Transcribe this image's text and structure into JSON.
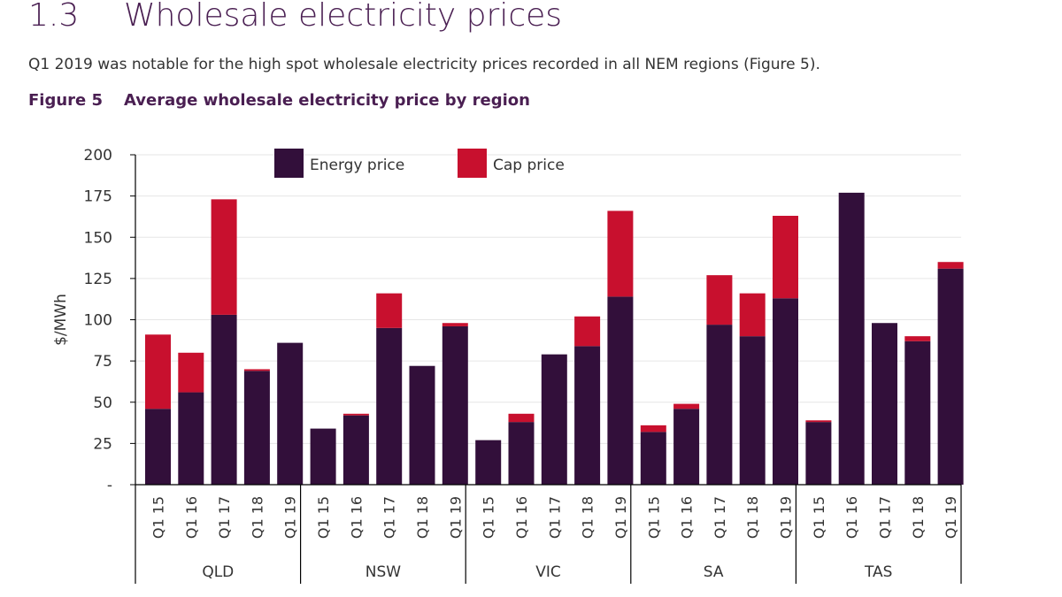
{
  "section": {
    "number": "1.3",
    "title": "Wholesale electricity prices"
  },
  "intro_text": "Q1 2019 was notable for the high spot wholesale electricity prices recorded in all NEM regions (Figure 5).",
  "figure": {
    "number": "Figure 5",
    "title": "Average wholesale electricity price by region"
  },
  "colors": {
    "energy": "#320f3a",
    "cap": "#c8102e",
    "grid": "#e6e6e6",
    "axis": "#000000",
    "text": "#333333"
  },
  "chart_data": {
    "type": "bar",
    "stacked": true,
    "ylabel": "$/MWh",
    "ylim": [
      0,
      200
    ],
    "yticks": [
      {
        "value": 0,
        "label": "-"
      },
      {
        "value": 25,
        "label": "25"
      },
      {
        "value": 50,
        "label": "50"
      },
      {
        "value": 75,
        "label": "75"
      },
      {
        "value": 100,
        "label": "100"
      },
      {
        "value": 125,
        "label": "125"
      },
      {
        "value": 150,
        "label": "150"
      },
      {
        "value": 175,
        "label": "175"
      },
      {
        "value": 200,
        "label": "200"
      }
    ],
    "grid": true,
    "legend_position": "top-center",
    "quarters": [
      "Q1 15",
      "Q1 16",
      "Q1 17",
      "Q1 18",
      "Q1 19"
    ],
    "regions": [
      "QLD",
      "NSW",
      "VIC",
      "SA",
      "TAS"
    ],
    "series": [
      {
        "name": "Energy price",
        "values": {
          "QLD": [
            46,
            56,
            103,
            69,
            86
          ],
          "NSW": [
            34,
            42,
            95,
            72,
            96
          ],
          "VIC": [
            27,
            38,
            79,
            84,
            114
          ],
          "SA": [
            32,
            46,
            97,
            90,
            113
          ],
          "TAS": [
            38,
            177,
            98,
            87,
            131
          ]
        }
      },
      {
        "name": "Cap price",
        "values": {
          "QLD": [
            45,
            24,
            70,
            1,
            0
          ],
          "NSW": [
            0,
            1,
            21,
            0,
            2
          ],
          "VIC": [
            0,
            5,
            0,
            18,
            52
          ],
          "SA": [
            4,
            3,
            30,
            26,
            50
          ],
          "TAS": [
            1,
            0,
            0,
            3,
            4
          ]
        }
      }
    ]
  }
}
